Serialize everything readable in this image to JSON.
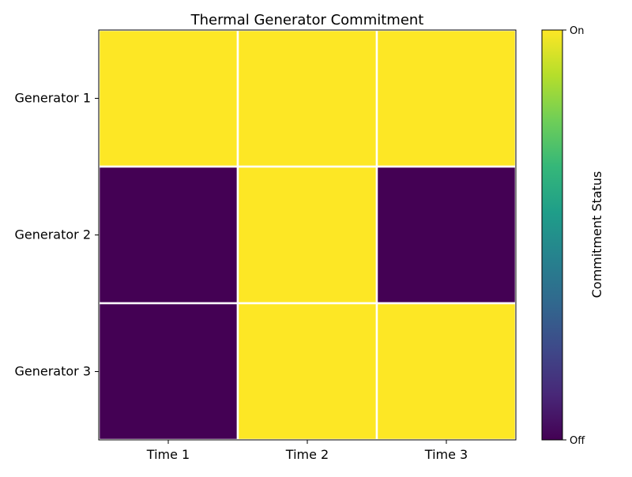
{
  "chart_data": {
    "type": "heatmap",
    "title": "Thermal Generator Commitment",
    "x_categories": [
      "Time 1",
      "Time 2",
      "Time 3"
    ],
    "y_categories": [
      "Generator 1",
      "Generator 2",
      "Generator 3"
    ],
    "values": [
      [
        1,
        1,
        1
      ],
      [
        0,
        1,
        0
      ],
      [
        0,
        1,
        1
      ]
    ],
    "value_range": [
      0,
      1
    ],
    "colormap": "viridis",
    "colors": {
      "on": "#fde725",
      "off": "#440154",
      "cell_border": "#ffffff"
    },
    "colorbar": {
      "label": "Commitment Status",
      "ticks": [
        {
          "value": 1,
          "label": "On"
        },
        {
          "value": 0,
          "label": "Off"
        }
      ],
      "position": "right"
    }
  }
}
